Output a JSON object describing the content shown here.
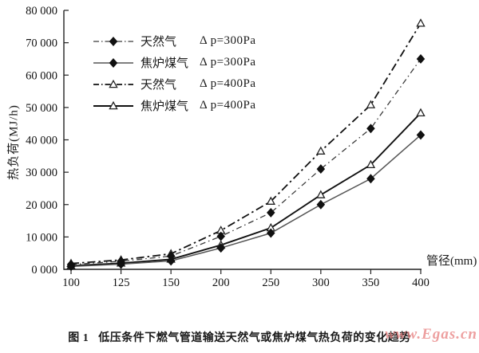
{
  "chart_data": {
    "type": "line",
    "title": "",
    "xlabel": "管径(mm)",
    "ylabel": "热负荷(MJ/h)",
    "categories": [
      "100",
      "125",
      "150",
      "200",
      "250",
      "300",
      "350",
      "400"
    ],
    "ylim": [
      0,
      80000
    ],
    "y_ticks": [
      "0 000",
      "10 000",
      "20 000",
      "30 000",
      "40 000",
      "50 000",
      "60 000",
      "70 000",
      "80 000"
    ],
    "grid": false,
    "legend_position": "top-left-inside",
    "series": [
      {
        "name": "天然气",
        "pressure": "Δ p=300Pa",
        "line": "dashdot",
        "marker": "diamond-filled",
        "color": "#3a3a3a",
        "values": [
          1500,
          2500,
          4100,
          10200,
          17500,
          31000,
          43500,
          65000
        ]
      },
      {
        "name": "焦炉煤气",
        "pressure": "Δ p=300Pa",
        "line": "solid",
        "marker": "diamond-filled",
        "color": "#555555",
        "values": [
          900,
          1600,
          2600,
          6600,
          11200,
          20000,
          28000,
          41500
        ]
      },
      {
        "name": "天然气",
        "pressure": "Δ p=400Pa",
        "line": "dashdot",
        "marker": "triangle-open",
        "color": "#111111",
        "values": [
          1800,
          2900,
          4800,
          12000,
          21000,
          36500,
          50800,
          76000
        ]
      },
      {
        "name": "焦炉煤气",
        "pressure": "Δ p=400Pa",
        "line": "solid",
        "marker": "triangle-open",
        "color": "#111111",
        "values": [
          1100,
          1900,
          3100,
          7500,
          12800,
          23000,
          32300,
          48300
        ]
      }
    ]
  },
  "caption": {
    "figure_label": "图 1",
    "text": "低压条件下燃气管道输送天然气或焦炉煤气热负荷的变化趋势"
  },
  "watermark": {
    "text": "www.Egas.cn",
    "color": "#e87f7f"
  }
}
